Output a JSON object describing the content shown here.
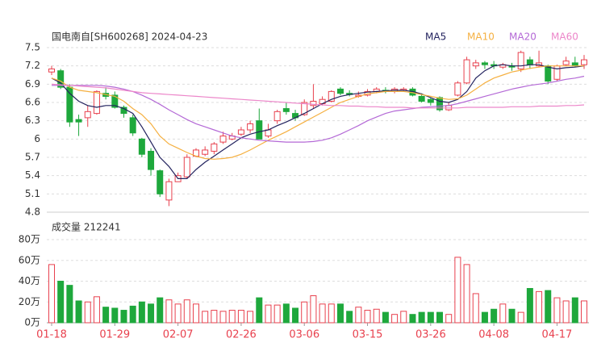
{
  "chart_data": [
    {
      "type": "candlestick",
      "title": "国电南自[SH600268] 2024-04-23",
      "ylim": [
        4.8,
        7.5
      ],
      "yticks": [
        7.5,
        7.2,
        6.9,
        6.6,
        6.3,
        6,
        5.7,
        5.4,
        5.1,
        4.8
      ],
      "grid": true,
      "up_color": "#e8414e",
      "down_color": "#1ea83c",
      "open": [
        7.1,
        7.12,
        6.85,
        6.32,
        6.35,
        6.42,
        6.75,
        6.72,
        6.52,
        6.35,
        6.0,
        5.8,
        5.48,
        5.0,
        5.3,
        5.38,
        5.72,
        5.75,
        5.8,
        5.95,
        6.0,
        6.08,
        6.15,
        6.3,
        6.05,
        6.3,
        6.5,
        6.42,
        6.4,
        6.55,
        6.58,
        6.62,
        6.82,
        6.75,
        6.7,
        6.72,
        6.78,
        6.8,
        6.78,
        6.8,
        6.82,
        6.7,
        6.65,
        6.68,
        6.48,
        6.72,
        6.92,
        7.2,
        7.25,
        7.22,
        7.18,
        7.2,
        7.15,
        7.3,
        7.2,
        7.2,
        6.98,
        7.22,
        7.25,
        7.22
      ],
      "high": [
        7.2,
        7.15,
        6.9,
        6.4,
        6.55,
        6.8,
        6.85,
        6.78,
        6.55,
        6.4,
        6.02,
        5.85,
        5.5,
        5.35,
        5.45,
        5.75,
        5.85,
        5.88,
        5.95,
        6.12,
        6.1,
        6.2,
        6.3,
        6.5,
        6.25,
        6.48,
        6.6,
        6.48,
        6.65,
        6.9,
        6.7,
        6.8,
        6.85,
        6.8,
        6.78,
        6.82,
        6.85,
        6.85,
        6.85,
        6.85,
        6.85,
        6.75,
        6.68,
        6.7,
        6.6,
        6.95,
        7.35,
        7.3,
        7.28,
        7.28,
        7.25,
        7.25,
        7.45,
        7.35,
        7.45,
        7.22,
        7.22,
        7.35,
        7.35,
        7.38
      ],
      "low": [
        7.05,
        6.82,
        6.2,
        6.05,
        6.2,
        6.4,
        6.65,
        6.5,
        6.35,
        6.05,
        5.7,
        5.4,
        5.05,
        4.9,
        5.3,
        5.35,
        5.7,
        5.72,
        5.75,
        5.92,
        5.98,
        6.05,
        6.1,
        6.0,
        6.02,
        6.25,
        6.4,
        6.3,
        6.38,
        6.5,
        6.55,
        6.6,
        6.72,
        6.7,
        6.68,
        6.7,
        6.75,
        6.75,
        6.75,
        6.78,
        6.7,
        6.6,
        6.55,
        6.45,
        6.46,
        6.7,
        6.9,
        7.15,
        7.15,
        7.15,
        7.15,
        7.12,
        7.1,
        7.15,
        7.18,
        6.9,
        6.95,
        7.2,
        7.18,
        7.15
      ],
      "close": [
        7.15,
        6.85,
        6.28,
        6.28,
        6.45,
        6.78,
        6.7,
        6.52,
        6.42,
        6.1,
        5.75,
        5.5,
        5.1,
        5.3,
        5.4,
        5.7,
        5.82,
        5.82,
        5.92,
        6.05,
        6.05,
        6.15,
        6.25,
        6.0,
        6.15,
        6.45,
        6.45,
        6.35,
        6.6,
        6.62,
        6.65,
        6.78,
        6.75,
        6.73,
        6.72,
        6.78,
        6.82,
        6.78,
        6.82,
        6.82,
        6.72,
        6.62,
        6.6,
        6.48,
        6.55,
        6.92,
        7.3,
        7.25,
        7.22,
        7.2,
        7.22,
        7.18,
        7.42,
        7.22,
        7.25,
        6.95,
        7.2,
        7.28,
        7.2,
        7.3
      ],
      "series": [
        {
          "name": "MA5",
          "color": "#22225e",
          "values": [
            7.0,
            6.92,
            6.75,
            6.62,
            6.55,
            6.52,
            6.55,
            6.55,
            6.5,
            6.42,
            6.2,
            5.95,
            5.7,
            5.55,
            5.35,
            5.35,
            5.5,
            5.62,
            5.72,
            5.82,
            5.92,
            6.02,
            6.08,
            6.12,
            6.15,
            6.22,
            6.28,
            6.35,
            6.42,
            6.5,
            6.58,
            6.65,
            6.7,
            6.73,
            6.75,
            6.77,
            6.78,
            6.79,
            6.8,
            6.8,
            6.78,
            6.74,
            6.68,
            6.62,
            6.6,
            6.65,
            6.78,
            7.0,
            7.12,
            7.2,
            7.22,
            7.2,
            7.2,
            7.22,
            7.22,
            7.18,
            7.15,
            7.17,
            7.18,
            7.2
          ]
        },
        {
          "name": "MA10",
          "color": "#f5b041",
          "values": [
            7.0,
            6.95,
            6.85,
            6.8,
            6.78,
            6.76,
            6.73,
            6.7,
            6.62,
            6.5,
            6.4,
            6.25,
            6.05,
            5.92,
            5.85,
            5.78,
            5.72,
            5.68,
            5.67,
            5.68,
            5.7,
            5.75,
            5.82,
            5.9,
            5.98,
            6.05,
            6.12,
            6.2,
            6.28,
            6.36,
            6.44,
            6.52,
            6.6,
            6.65,
            6.7,
            6.74,
            6.76,
            6.78,
            6.78,
            6.78,
            6.76,
            6.73,
            6.7,
            6.67,
            6.65,
            6.66,
            6.72,
            6.82,
            6.92,
            7.0,
            7.05,
            7.1,
            7.13,
            7.16,
            7.18,
            7.2,
            7.2,
            7.2,
            7.2,
            7.2
          ]
        },
        {
          "name": "MA20",
          "color": "#b469d6",
          "values": [
            6.88,
            6.88,
            6.88,
            6.88,
            6.88,
            6.88,
            6.87,
            6.85,
            6.82,
            6.78,
            6.72,
            6.65,
            6.57,
            6.48,
            6.4,
            6.32,
            6.25,
            6.2,
            6.15,
            6.1,
            6.05,
            6.02,
            6.0,
            5.98,
            5.97,
            5.96,
            5.95,
            5.95,
            5.95,
            5.96,
            5.98,
            6.02,
            6.08,
            6.15,
            6.22,
            6.3,
            6.36,
            6.42,
            6.46,
            6.48,
            6.5,
            6.52,
            6.53,
            6.54,
            6.55,
            6.58,
            6.62,
            6.66,
            6.7,
            6.74,
            6.78,
            6.82,
            6.85,
            6.88,
            6.9,
            6.92,
            6.95,
            6.98,
            7.0,
            7.03
          ]
        },
        {
          "name": "MA60",
          "color": "#ec86c9",
          "values": [
            6.9,
            6.89,
            6.88,
            6.87,
            6.86,
            6.85,
            6.84,
            6.82,
            6.8,
            6.78,
            6.76,
            6.75,
            6.74,
            6.73,
            6.72,
            6.71,
            6.7,
            6.69,
            6.68,
            6.67,
            6.66,
            6.65,
            6.64,
            6.63,
            6.62,
            6.61,
            6.6,
            6.59,
            6.58,
            6.57,
            6.56,
            6.55,
            6.55,
            6.54,
            6.54,
            6.53,
            6.53,
            6.52,
            6.52,
            6.52,
            6.51,
            6.51,
            6.51,
            6.51,
            6.51,
            6.51,
            6.52,
            6.52,
            6.52,
            6.52,
            6.52,
            6.53,
            6.53,
            6.53,
            6.54,
            6.54,
            6.54,
            6.55,
            6.55,
            6.56
          ]
        }
      ]
    },
    {
      "type": "volume",
      "title": "成交量 212241",
      "ylim": [
        0,
        80
      ],
      "yticks": [
        {
          "value": 80,
          "label": "80万"
        },
        {
          "value": 60,
          "label": "60万"
        },
        {
          "value": 40,
          "label": "40万"
        },
        {
          "value": 20,
          "label": "20万"
        },
        {
          "value": 0,
          "label": "0万"
        }
      ],
      "grid": true,
      "categories": [
        "01-18",
        null,
        null,
        null,
        null,
        null,
        null,
        "01-29",
        null,
        null,
        null,
        null,
        null,
        null,
        "02-07",
        null,
        null,
        null,
        null,
        null,
        null,
        "02-26",
        null,
        null,
        null,
        null,
        null,
        null,
        "03-06",
        null,
        null,
        null,
        null,
        null,
        null,
        "03-15",
        null,
        null,
        null,
        null,
        null,
        null,
        "03-26",
        null,
        null,
        null,
        null,
        null,
        null,
        "04-08",
        null,
        null,
        null,
        null,
        null,
        null,
        "04-17",
        null,
        null,
        null
      ],
      "values": [
        56,
        40,
        36,
        21,
        20,
        25,
        15,
        14,
        12,
        16,
        20,
        18,
        24,
        22,
        18,
        22,
        18,
        11,
        12,
        11,
        12,
        12,
        11,
        24,
        17,
        17,
        18,
        14,
        20,
        26,
        18,
        18,
        18,
        11,
        15,
        12,
        13,
        10,
        8,
        11,
        8,
        10,
        10,
        10,
        8,
        63,
        56,
        28,
        10,
        13,
        18,
        13,
        10,
        33,
        30,
        31,
        24,
        21,
        24,
        21
      ]
    }
  ]
}
